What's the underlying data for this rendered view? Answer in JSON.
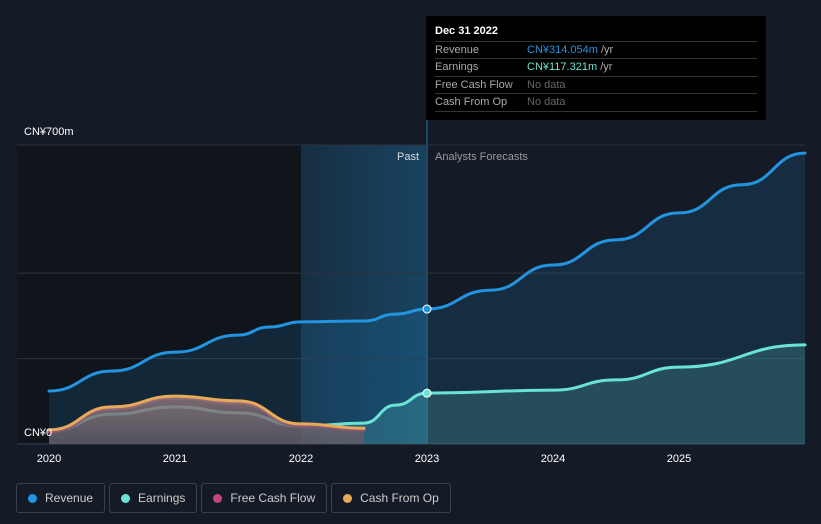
{
  "chart_data": {
    "type": "line",
    "ylim": [
      0,
      700
    ],
    "xlim": [
      2019.8,
      2026
    ],
    "y_tick_labels": [
      "CN¥700m",
      "CN¥0"
    ],
    "x_tick_labels": [
      "2020",
      "2021",
      "2022",
      "2023",
      "2024",
      "2025"
    ],
    "past_label": "Past",
    "forecast_label": "Analysts Forecasts",
    "divider_x": 2023,
    "series": [
      {
        "name": "Revenue",
        "color": "#2394df",
        "x": [
          2020,
          2020.5,
          2021,
          2021.5,
          2021.75,
          2022,
          2022.5,
          2022.75,
          2023,
          2023.5,
          2024,
          2024.5,
          2025,
          2025.5,
          2026
        ],
        "values": [
          124,
          171,
          215,
          255,
          274,
          286,
          288,
          304,
          316,
          360,
          419,
          478,
          541,
          607,
          681
        ]
      },
      {
        "name": "Earnings",
        "color": "#6ae3d5",
        "x": [
          2020,
          2020.5,
          2021,
          2021.5,
          2022,
          2022.5,
          2022.75,
          2023,
          2024,
          2024.5,
          2025,
          2026
        ],
        "values": [
          30,
          70,
          87,
          73,
          42,
          49,
          91,
          119,
          126,
          150,
          180,
          232
        ]
      },
      {
        "name": "Free Cash Flow",
        "color": "#c4457e",
        "x": [
          2020,
          2020.5,
          2021,
          2021.5,
          2022,
          2022.5
        ],
        "values": [
          28,
          82,
          108,
          96,
          42,
          33
        ]
      },
      {
        "name": "Cash From Op",
        "color": "#e8a958",
        "x": [
          2020,
          2020.5,
          2021,
          2021.5,
          2022,
          2022.5
        ],
        "values": [
          33,
          87,
          112,
          101,
          47,
          37
        ]
      }
    ]
  },
  "tooltip": {
    "date": "Dec 31 2022",
    "rows": [
      {
        "label": "Revenue",
        "value": "CN¥314.054m",
        "unit": "/yr",
        "color": "#2394df"
      },
      {
        "label": "Earnings",
        "value": "CN¥117.321m",
        "unit": "/yr",
        "color": "#6ae3d5"
      },
      {
        "label": "Free Cash Flow",
        "value": "No data",
        "unit": "",
        "color": "#666"
      },
      {
        "label": "Cash From Op",
        "value": "No data",
        "unit": "",
        "color": "#666"
      }
    ]
  },
  "legend": [
    {
      "label": "Revenue",
      "color": "#2394df"
    },
    {
      "label": "Earnings",
      "color": "#6ae3d5"
    },
    {
      "label": "Free Cash Flow",
      "color": "#c4457e"
    },
    {
      "label": "Cash From Op",
      "color": "#e8a958"
    }
  ]
}
